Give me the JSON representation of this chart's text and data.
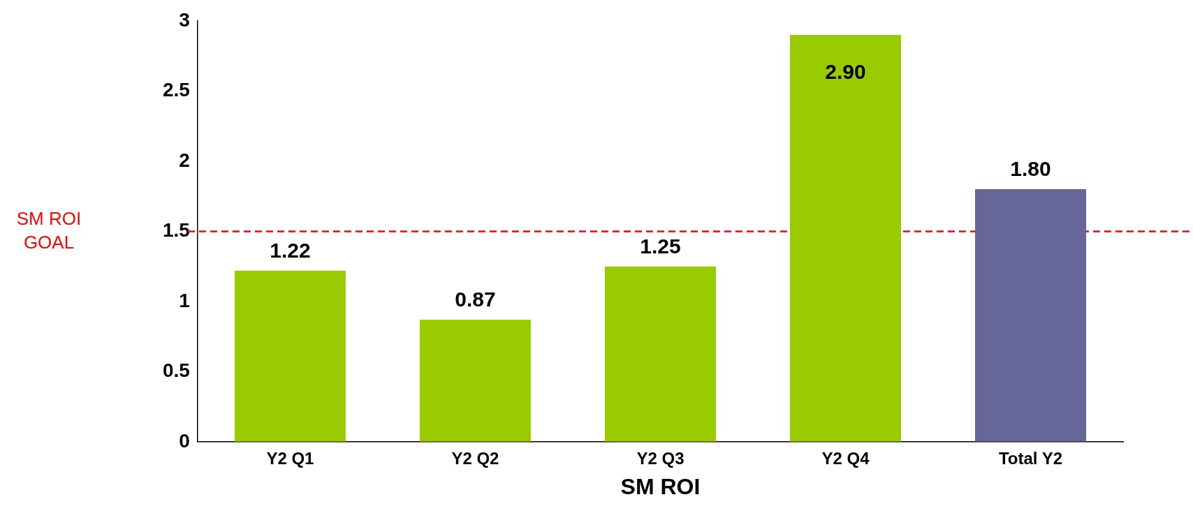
{
  "chart_data": {
    "type": "bar",
    "xlabel": "SM ROI",
    "categories": [
      "Y2 Q1",
      "Y2 Q2",
      "Y2 Q3",
      "Y2 Q4",
      "Total Y2"
    ],
    "values": [
      1.22,
      0.87,
      1.25,
      2.9,
      1.8
    ],
    "colors": [
      "#99cc00",
      "#99cc00",
      "#99cc00",
      "#99cc00",
      "#666699"
    ],
    "value_labels": [
      "1.22",
      "0.87",
      "1.25",
      "2.90",
      "1.80"
    ],
    "ylim": [
      0,
      3
    ],
    "yticks": [
      0,
      0.5,
      1,
      1.5,
      2,
      2.5,
      3
    ],
    "ref_lines": [
      {
        "axis": "y",
        "value": 1.5,
        "label": "SM ROI GOAL",
        "color": "#ff0000",
        "line_style": "dashed"
      }
    ],
    "grid": false,
    "legend": false
  }
}
